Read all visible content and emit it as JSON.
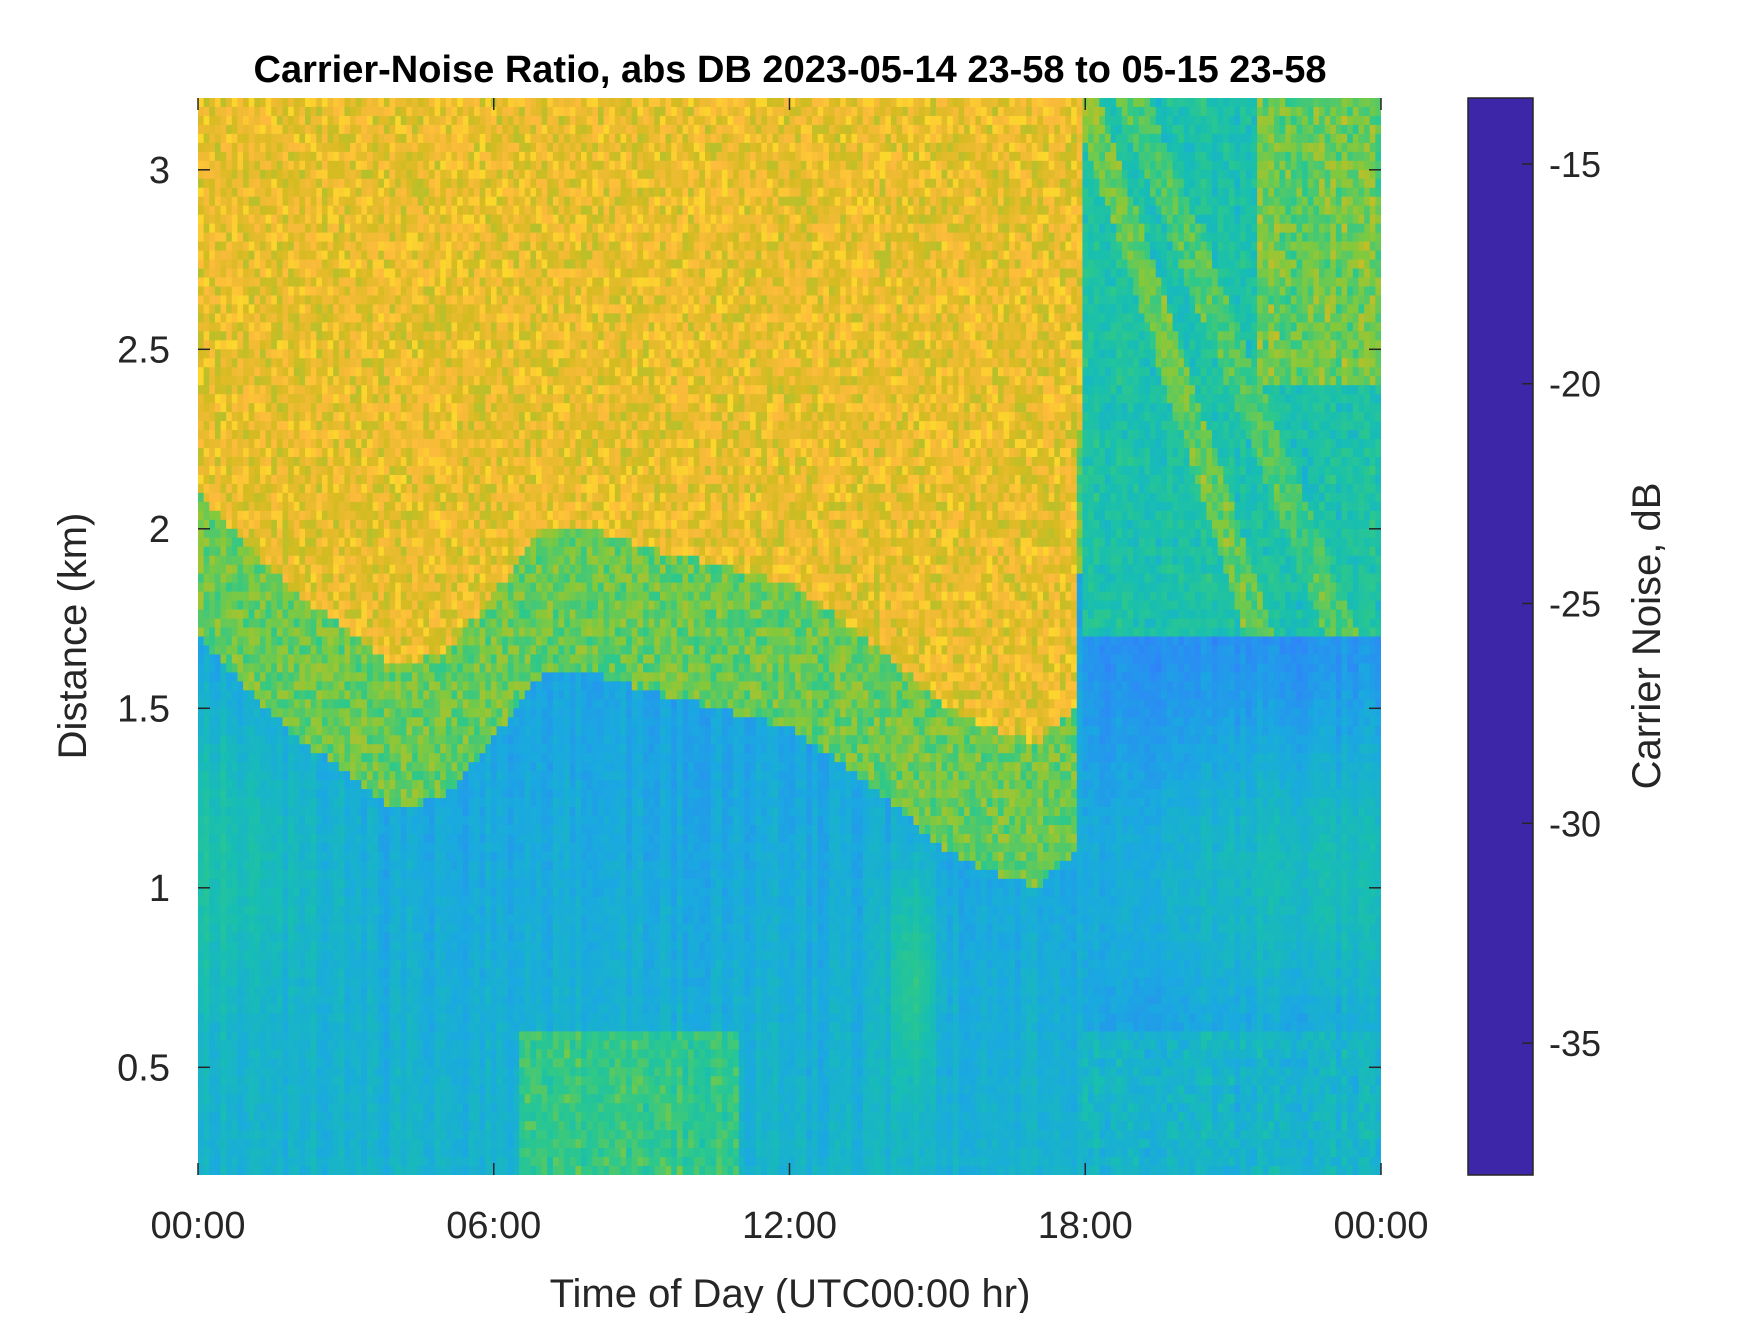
{
  "chart_data": {
    "type": "heatmap",
    "title": "Carrier-Noise Ratio, abs DB 2023-05-14 23-58 to 05-15 23-58",
    "xlabel": "Time of Day (UTC00:00 hr)",
    "ylabel": "Distance (km)",
    "colorbar_label": "Carrier Noise, dB",
    "x_unit": "hours",
    "xlim": [
      0,
      24
    ],
    "ylim": [
      0.2,
      3.2
    ],
    "clim": [
      -38,
      -13.5
    ],
    "grid": false,
    "x_ticks": [
      {
        "value": 0,
        "label": "00:00"
      },
      {
        "value": 6,
        "label": "06:00"
      },
      {
        "value": 12,
        "label": "12:00"
      },
      {
        "value": 18,
        "label": "18:00"
      },
      {
        "value": 24,
        "label": "00:00"
      }
    ],
    "y_ticks": [
      {
        "value": 0.5,
        "label": "0.5"
      },
      {
        "value": 1,
        "label": "1"
      },
      {
        "value": 1.5,
        "label": "1.5"
      },
      {
        "value": 2,
        "label": "2"
      },
      {
        "value": 2.5,
        "label": "2.5"
      },
      {
        "value": 3,
        "label": "3"
      }
    ],
    "colorbar_ticks": [
      {
        "value": -15,
        "label": "-15"
      },
      {
        "value": -20,
        "label": "-20"
      },
      {
        "value": -25,
        "label": "-25"
      },
      {
        "value": -30,
        "label": "-30"
      },
      {
        "value": -35,
        "label": "-35"
      }
    ],
    "colormap": [
      "#3e26a8",
      "#4743f3",
      "#2e87f7",
      "#1aa9e0",
      "#18beb1",
      "#2ec88a",
      "#83c93c",
      "#d5bb21",
      "#fdbb3c",
      "#f9fb15"
    ],
    "boundary_low_signal_km": [
      [
        0,
        2.0
      ],
      [
        1,
        1.85
      ],
      [
        2,
        1.72
      ],
      [
        3,
        1.62
      ],
      [
        4,
        1.52
      ],
      [
        5,
        1.55
      ],
      [
        6,
        1.72
      ],
      [
        7,
        1.9
      ],
      [
        8,
        1.9
      ],
      [
        9,
        1.85
      ],
      [
        10,
        1.82
      ],
      [
        11,
        1.78
      ],
      [
        12,
        1.75
      ],
      [
        13,
        1.65
      ],
      [
        14,
        1.55
      ],
      [
        15,
        1.42
      ],
      [
        16,
        1.35
      ],
      [
        17,
        1.3
      ],
      [
        17.8,
        1.4
      ],
      [
        18.0,
        3.2
      ],
      [
        24,
        3.2
      ]
    ],
    "night_blue_core_km": [
      0.8,
      1.4
    ]
  }
}
